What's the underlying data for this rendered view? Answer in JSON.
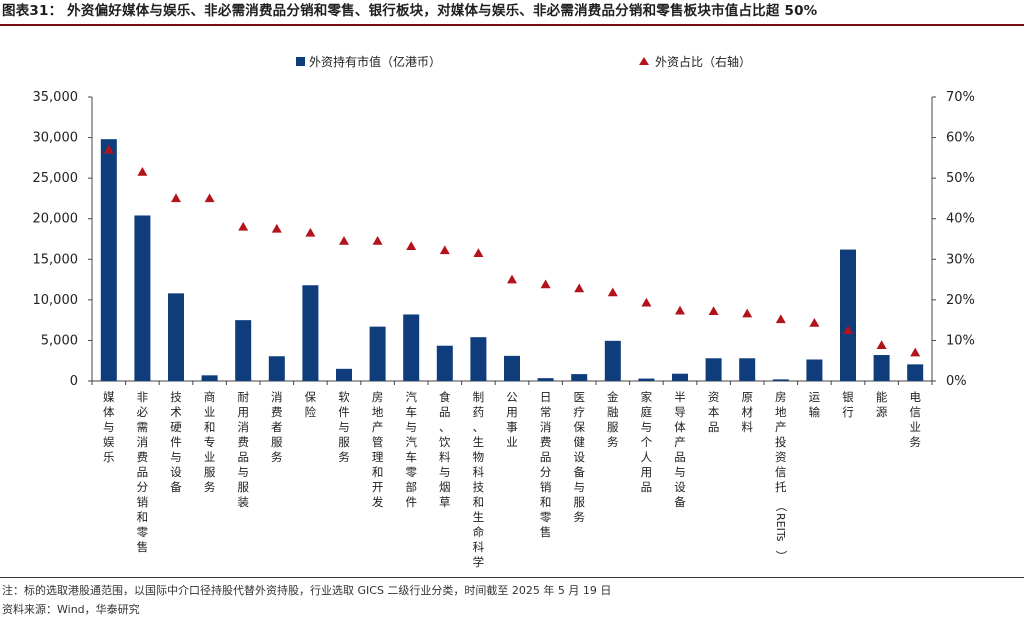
{
  "title": "图表31： 外资偏好媒体与娱乐、非必需消费品分销和零售、银行板块，对媒体与娱乐、非必需消费品分销和零售板块市值占比超 50%",
  "note": "注：标的选取港股通范围，以国际中介口径持股代替外资持股，行业选取 GICS 二级行业分类，时间截至 2025 年 5 月 19 日",
  "source": "资料来源：Wind，华泰研究",
  "colors": {
    "bar": "#0f3c7a",
    "marker": "#b3141b",
    "title_rule": "#7a0c14"
  },
  "chart_data": {
    "type": "bar",
    "categories": [
      "媒体与娱乐",
      "非必需消费品分销和零售",
      "技术硬件与设备",
      "商业和专业服务",
      "耐用消费品与服装",
      "消费者服务",
      "保险",
      "软件与服务",
      "房地产管理和开发",
      "汽车与汽车零部件",
      "食品、饮料与烟草",
      "制药、生物科技和生命科学",
      "公用事业",
      "日常消费品分销和零售",
      "医疗保健设备与服务",
      "金融服务",
      "家庭与个人用品",
      "半导体产品与设备",
      "资本品",
      "原材料",
      "房地产投资信托（REITs）",
      "运输",
      "银行",
      "能源",
      "电信业务"
    ],
    "series": [
      {
        "name": "外资持有市值（亿港币）",
        "type": "bar",
        "axis": "left",
        "values": [
          29800,
          20400,
          10800,
          700,
          7500,
          3050,
          11800,
          1500,
          6700,
          8200,
          4350,
          5400,
          3100,
          350,
          850,
          4950,
          300,
          900,
          2800,
          2800,
          200,
          2650,
          16200,
          3200,
          2050
        ]
      },
      {
        "name": "外资占比（右轴）",
        "type": "marker",
        "axis": "right",
        "values": [
          57,
          51.5,
          45,
          45,
          38,
          37.5,
          36.5,
          34.5,
          34.5,
          33.2,
          32.2,
          31.5,
          25,
          23.8,
          22.8,
          21.8,
          19.3,
          17.3,
          17.2,
          16.6,
          15.2,
          14.3,
          12.5,
          8.8,
          7
        ]
      }
    ],
    "y_left": {
      "min": 0,
      "max": 35000,
      "ticks": [
        "0",
        "5,000",
        "10,000",
        "15,000",
        "20,000",
        "25,000",
        "30,000",
        "35,000"
      ]
    },
    "y_right": {
      "min": 0,
      "max": 70,
      "ticks": [
        "0%",
        "10%",
        "20%",
        "30%",
        "40%",
        "50%",
        "60%",
        "70%"
      ]
    },
    "legend_position": "top",
    "grid": false
  }
}
